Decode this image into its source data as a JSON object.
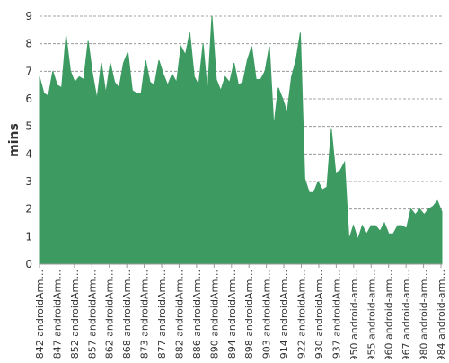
{
  "chart_data": {
    "type": "area",
    "ylabel": "mins",
    "xlabel": "",
    "title": "",
    "ylim": [
      0,
      9
    ],
    "yticks": [
      "0",
      "1",
      "2",
      "3",
      "4",
      "5",
      "6",
      "7",
      "8",
      "9"
    ],
    "grid": "horizontal dashed",
    "color": "#3d9b62",
    "xtick_labels": [
      "#842 androidArm...",
      "#847 androidArm...",
      "#852 androidArm...",
      "#857 androidArm...",
      "#862 androidArm...",
      "#868 androidArm...",
      "#873 androidArm...",
      "#877 androidArm...",
      "#882 androidArm...",
      "#886 androidArm...",
      "#890 androidArm...",
      "#894 androidArm...",
      "#898 androidArm...",
      "#903 androidArm...",
      "#914 androidArm...",
      "#922 androidArm...",
      "#930 androidArm...",
      "#937 androidArm...",
      "#950 android-arm...",
      "#955 android-arm...",
      "#960 android-arm...",
      "#967 android-arm...",
      "#980 android-arm...",
      "#984 android-arm..."
    ],
    "values": [
      6.8,
      6.2,
      6.1,
      7.0,
      6.5,
      6.4,
      8.3,
      7.0,
      6.6,
      6.8,
      6.7,
      8.1,
      6.9,
      6.0,
      7.3,
      6.2,
      7.3,
      6.6,
      6.4,
      7.3,
      7.7,
      6.3,
      6.2,
      6.2,
      7.4,
      6.6,
      6.5,
      7.4,
      6.9,
      6.5,
      6.9,
      6.6,
      7.9,
      7.6,
      8.4,
      6.8,
      6.5,
      8.0,
      6.2,
      9.0,
      6.7,
      6.3,
      6.8,
      6.6,
      7.3,
      6.5,
      6.6,
      7.4,
      7.9,
      6.7,
      6.7,
      7.0,
      7.9,
      5.0,
      6.4,
      6.0,
      5.5,
      6.8,
      7.4,
      8.4,
      3.1,
      2.6,
      2.6,
      3.0,
      2.7,
      2.8,
      4.9,
      3.3,
      3.4,
      3.7,
      0.9,
      1.4,
      0.9,
      1.4,
      1.1,
      1.4,
      1.4,
      1.2,
      1.5,
      1.1,
      1.1,
      1.4,
      1.4,
      1.3,
      2.0,
      1.8,
      2.0,
      1.8,
      2.0,
      2.1,
      2.3,
      1.9
    ]
  }
}
